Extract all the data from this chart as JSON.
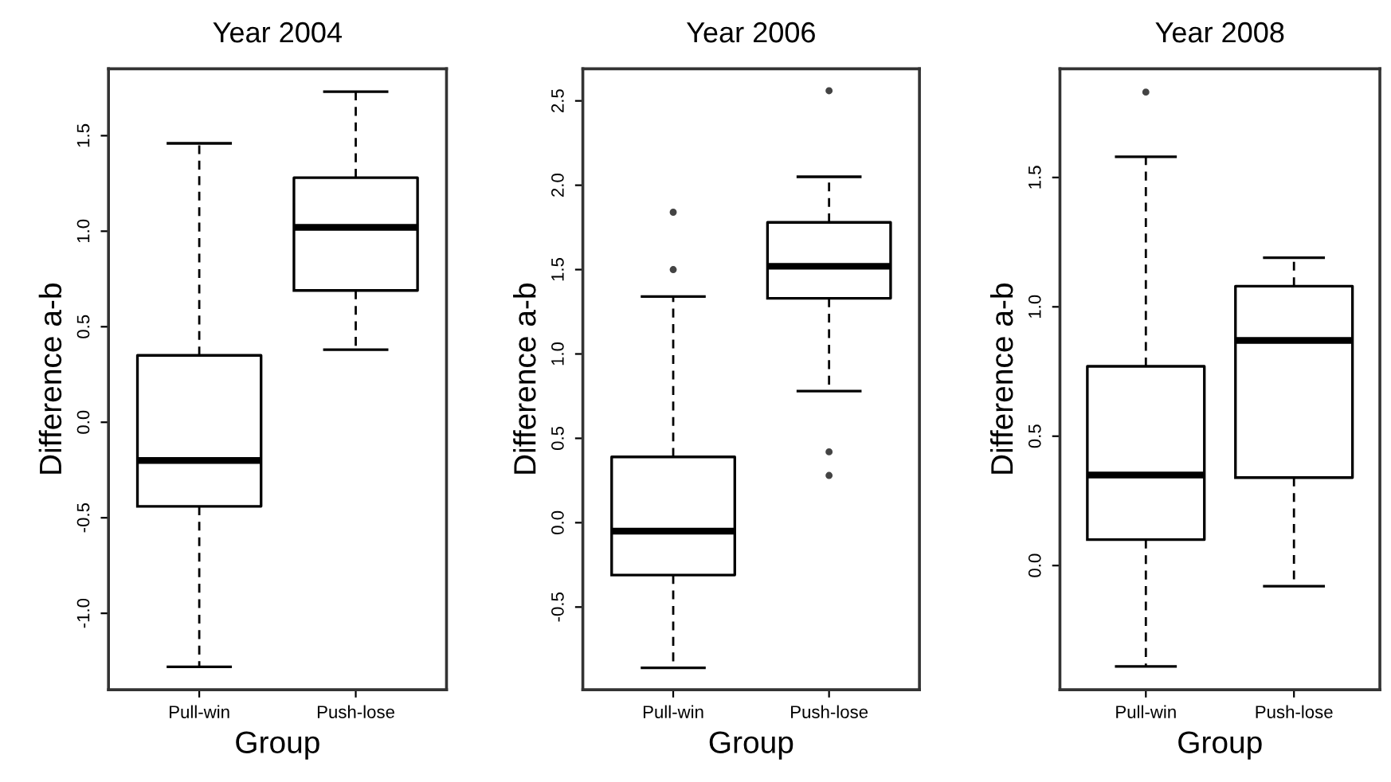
{
  "chart_data": [
    {
      "type": "box",
      "title": "Year 2004",
      "xlabel": "Group",
      "ylabel": "Difference a-b",
      "categories": [
        "Pull-win",
        "Push-lose"
      ],
      "boxes": [
        {
          "low": -1.28,
          "q1": -0.44,
          "median": -0.2,
          "q3": 0.35,
          "high": 1.46
        },
        {
          "low": 0.38,
          "q1": 0.69,
          "median": 1.02,
          "q3": 1.28,
          "high": 1.73
        }
      ],
      "ylim": [
        -1.4,
        1.85
      ],
      "yticks": [
        {
          "value": -1,
          "label": "-1.0"
        },
        {
          "value": -0.5,
          "label": "-0.5"
        },
        {
          "value": 0,
          "label": "0.0"
        },
        {
          "value": 0.5,
          "label": "0.5"
        },
        {
          "value": 1,
          "label": "1.0"
        },
        {
          "value": 1.5,
          "label": "1.5"
        }
      ]
    },
    {
      "type": "box",
      "title": "Year 2006",
      "xlabel": "Group",
      "ylabel": "Difference a-b",
      "categories": [
        "Pull-win",
        "Push-lose"
      ],
      "boxes": [
        {
          "low": -0.86,
          "q1": -0.31,
          "median": -0.05,
          "q3": 0.39,
          "high": 1.34,
          "outliers": [
            1.84,
            1.5
          ]
        },
        {
          "low": 0.78,
          "q1": 1.33,
          "median": 1.52,
          "q3": 1.78,
          "high": 2.05,
          "outliers": [
            2.56,
            0.42,
            0.28
          ]
        }
      ],
      "ylim": [
        -0.99,
        2.69
      ],
      "yticks": [
        {
          "value": -0.5,
          "label": "-0.5"
        },
        {
          "value": 0,
          "label": "0.0"
        },
        {
          "value": 0.5,
          "label": "0.5"
        },
        {
          "value": 1,
          "label": "1.0"
        },
        {
          "value": 1.5,
          "label": "1.5"
        },
        {
          "value": 2,
          "label": "2.0"
        },
        {
          "value": 2.5,
          "label": "2.5"
        }
      ]
    },
    {
      "type": "box",
      "title": "Year 2008",
      "xlabel": "Group",
      "ylabel": "Difference a-b",
      "categories": [
        "Pull-win",
        "Push-lose"
      ],
      "boxes": [
        {
          "low": -0.39,
          "q1": 0.1,
          "median": 0.35,
          "q3": 0.77,
          "high": 1.58,
          "outliers": [
            1.83
          ]
        },
        {
          "low": -0.08,
          "q1": 0.34,
          "median": 0.87,
          "q3": 1.08,
          "high": 1.19
        }
      ],
      "ylim": [
        -0.48,
        1.92
      ],
      "yticks": [
        {
          "value": 0,
          "label": "0.0"
        },
        {
          "value": 0.5,
          "label": "0.5"
        },
        {
          "value": 1,
          "label": "1.0"
        },
        {
          "value": 1.5,
          "label": "1.5"
        }
      ]
    }
  ]
}
